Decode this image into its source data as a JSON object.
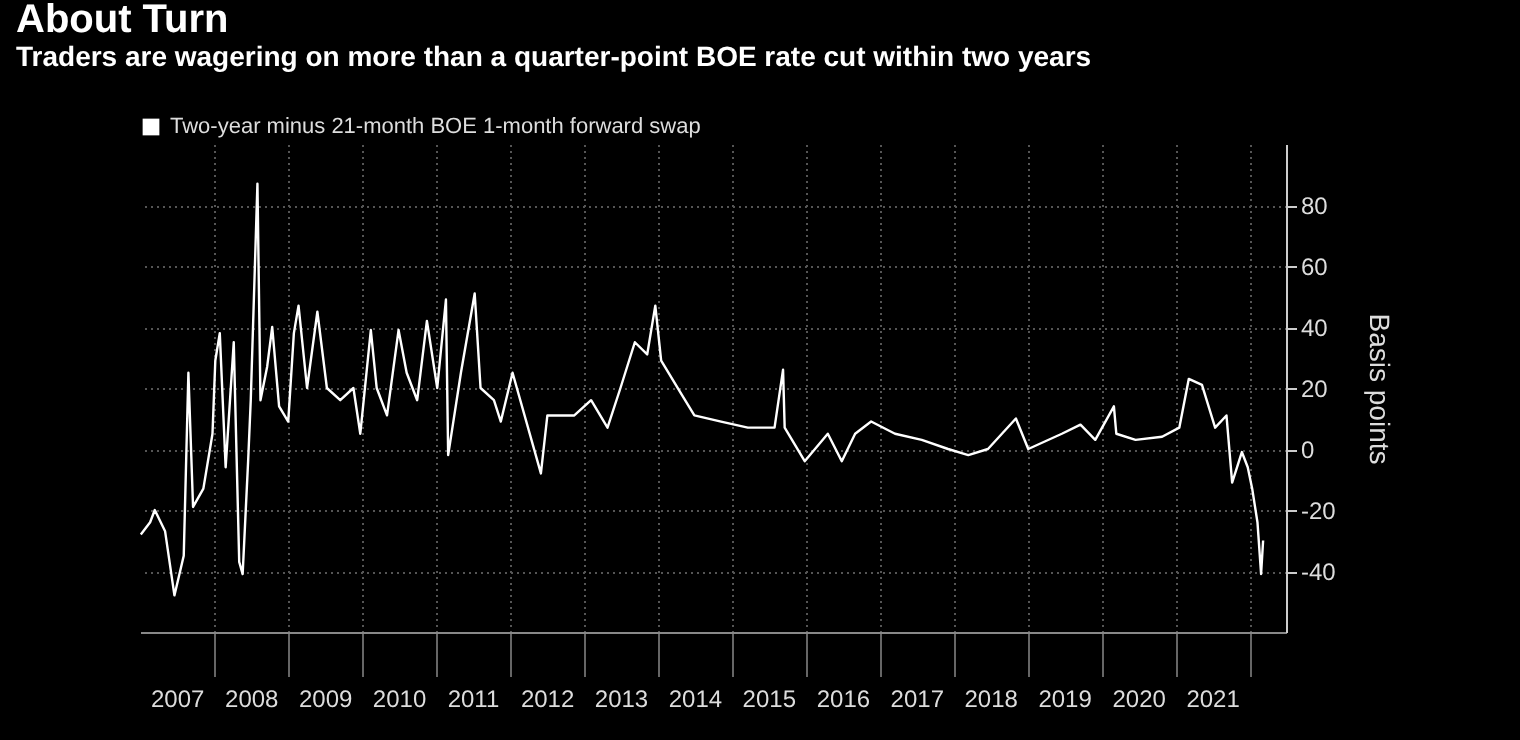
{
  "chart_data": {
    "type": "line",
    "title": "About Turn",
    "subtitle": "Traders are wagering on more than a quarter-point BOE rate cut within two years",
    "y2label": "Basis points",
    "legend": "top left",
    "grid": true,
    "marker": "none",
    "line_style": "solid",
    "xlim": [
      "2007-01-01",
      "2022-07-01"
    ],
    "xticks": [
      {
        "value": "2007-07-01",
        "label": "2007"
      },
      {
        "value": "2008-07-01",
        "label": "2008"
      },
      {
        "value": "2009-07-01",
        "label": "2009"
      },
      {
        "value": "2010-07-01",
        "label": "2010"
      },
      {
        "value": "2011-07-01",
        "label": "2011"
      },
      {
        "value": "2012-07-01",
        "label": "2012"
      },
      {
        "value": "2013-07-01",
        "label": "2013"
      },
      {
        "value": "2014-07-01",
        "label": "2014"
      },
      {
        "value": "2015-07-01",
        "label": "2015"
      },
      {
        "value": "2016-07-01",
        "label": "2016"
      },
      {
        "value": "2017-07-01",
        "label": "2017"
      },
      {
        "value": "2018-07-01",
        "label": "2018"
      },
      {
        "value": "2019-07-01",
        "label": "2019"
      },
      {
        "value": "2020-07-01",
        "label": "2020"
      },
      {
        "value": "2021-07-01",
        "label": "2021"
      },
      {
        "value": "2008-01-01",
        "label": null
      },
      {
        "value": "2009-01-01",
        "label": null
      },
      {
        "value": "2010-01-01",
        "label": null
      },
      {
        "value": "2011-01-01",
        "label": null
      },
      {
        "value": "2012-01-01",
        "label": null
      },
      {
        "value": "2013-01-01",
        "label": null
      },
      {
        "value": "2014-01-01",
        "label": null
      },
      {
        "value": "2015-01-01",
        "label": null
      },
      {
        "value": "2016-01-01",
        "label": null
      },
      {
        "value": "2017-01-01",
        "label": null
      },
      {
        "value": "2018-01-01",
        "label": null
      },
      {
        "value": "2019-01-01",
        "label": null
      },
      {
        "value": "2020-01-01",
        "label": null
      },
      {
        "value": "2021-01-01",
        "label": null
      },
      {
        "value": "2022-01-01",
        "label": null
      }
    ],
    "y2lim": [
      -60,
      100
    ],
    "y2ticks": [
      -40,
      -20,
      0,
      20,
      40,
      60,
      80
    ],
    "series": [
      {
        "name": "Two-year minus 21-month BOE 1-month forward swap",
        "color": "#ffffff",
        "axis": "y2",
        "x": [
          "2007-01-05",
          "2007-02-20",
          "2007-03-15",
          "2007-05-05",
          "2007-06-20",
          "2007-08-05",
          "2007-08-28",
          "2007-09-20",
          "2007-11-10",
          "2007-12-25",
          "2008-01-08",
          "2008-01-30",
          "2008-02-28",
          "2008-04-08",
          "2008-05-05",
          "2008-05-22",
          "2008-06-18",
          "2008-07-01",
          "2008-08-03",
          "2008-08-18",
          "2008-09-20",
          "2008-10-15",
          "2008-11-18",
          "2009-01-02",
          "2009-01-30",
          "2009-02-22",
          "2009-04-05",
          "2009-05-26",
          "2009-07-12",
          "2009-09-16",
          "2009-11-20",
          "2009-12-24",
          "2010-02-14",
          "2010-03-15",
          "2010-05-05",
          "2010-07-01",
          "2010-08-10",
          "2010-10-01",
          "2010-11-18",
          "2011-01-08",
          "2011-02-20",
          "2011-03-03",
          "2011-05-05",
          "2011-07-12",
          "2011-08-10",
          "2011-10-15",
          "2011-11-18",
          "2012-01-15",
          "2012-06-03",
          "2012-07-05",
          "2012-11-15",
          "2013-02-06",
          "2013-04-28",
          "2013-07-01",
          "2013-09-10",
          "2013-11-10",
          "2013-12-20",
          "2014-01-18",
          "2014-04-28",
          "2014-07-01",
          "2014-11-10",
          "2015-03-22",
          "2015-08-01",
          "2015-09-12",
          "2015-09-20",
          "2015-12-28",
          "2016-04-20",
          "2016-06-28",
          "2016-09-02",
          "2016-11-20",
          "2017-03-18",
          "2017-07-28",
          "2017-12-05",
          "2018-03-15",
          "2018-06-20",
          "2018-11-05",
          "2019-01-05",
          "2019-06-20",
          "2019-09-20",
          "2019-12-02",
          "2020-03-03",
          "2020-03-15",
          "2020-06-18",
          "2020-10-27",
          "2021-01-20",
          "2021-03-08",
          "2021-05-12",
          "2021-07-16",
          "2021-09-10",
          "2021-10-08",
          "2021-11-25",
          "2021-12-24",
          "2022-01-15",
          "2022-02-10",
          "2022-02-28",
          "2022-03-10"
        ],
        "values": [
          -28,
          -24,
          -20,
          -27,
          -48,
          -35,
          25,
          -19,
          -13,
          5,
          29,
          38,
          -6,
          35,
          -37,
          -41,
          -4,
          16,
          87,
          16,
          27,
          40,
          14,
          9,
          38,
          47,
          20,
          45,
          20,
          16,
          20,
          5,
          39,
          20,
          11,
          39,
          25,
          16,
          42,
          20,
          49,
          -2,
          25,
          51,
          20,
          16,
          9,
          25,
          -8,
          11,
          11,
          16,
          7,
          20,
          35,
          31,
          47,
          29,
          18,
          11,
          9,
          7,
          7,
          26,
          7,
          -4,
          5,
          -4,
          5,
          9,
          5,
          3,
          0,
          -2,
          0,
          10,
          0,
          5,
          8,
          3,
          14,
          5,
          3,
          4,
          7,
          23,
          21,
          7,
          11,
          -11,
          -1,
          -6,
          -13,
          -24,
          -41,
          -30
        ]
      }
    ]
  }
}
